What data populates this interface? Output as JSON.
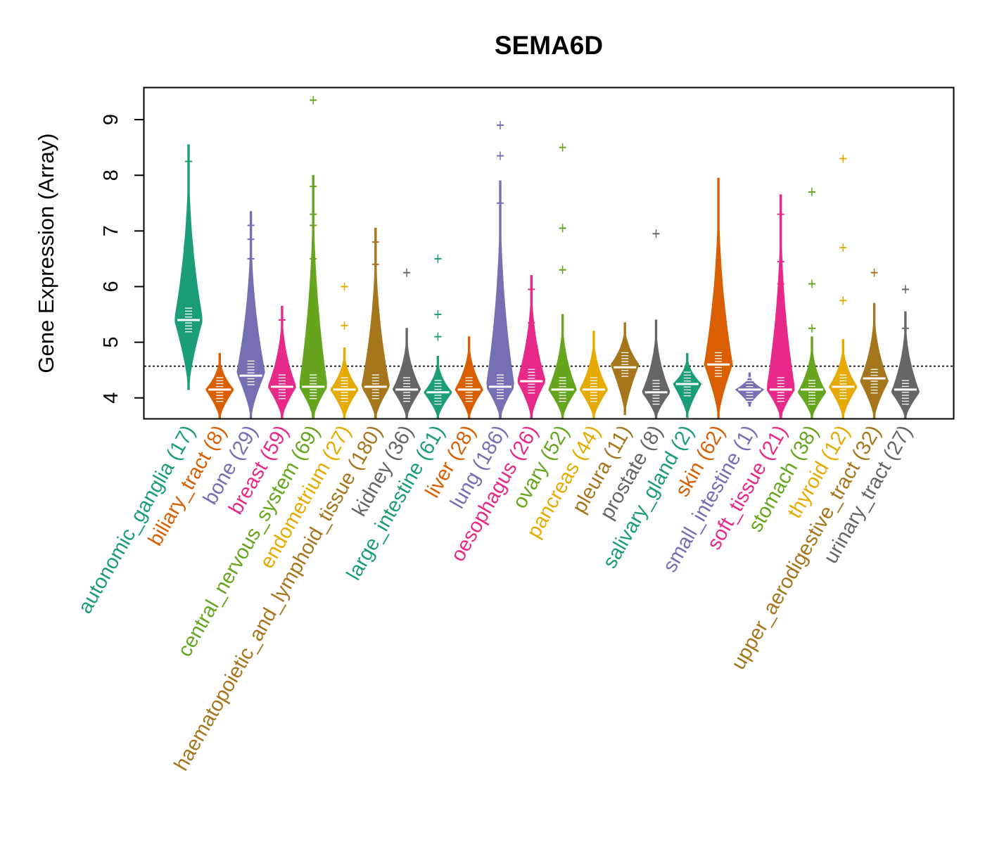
{
  "chart_data": {
    "type": "violin",
    "title": "SEMA6D",
    "ylabel": "Gene Expression (Array)",
    "xlabel": "",
    "ylim": [
      3.63,
      9.57
    ],
    "yticks": [
      "4",
      "5",
      "6",
      "7",
      "8",
      "9"
    ],
    "reference_line": 4.57,
    "grid": false,
    "categories": [
      {
        "label": "autonomic_ganglia (17)",
        "color": "#1B9E77",
        "min": 4.15,
        "max": 8.55,
        "median": 5.4,
        "wide_center": 5.4,
        "outliers": [
          8.25
        ]
      },
      {
        "label": "biliary_tract (8)",
        "color": "#D95F02",
        "min": 3.63,
        "max": 4.8,
        "median": 4.15,
        "wide_center": 4.15,
        "outliers": []
      },
      {
        "label": "bone (29)",
        "color": "#7570B3",
        "min": 3.63,
        "max": 7.35,
        "median": 4.4,
        "wide_center": 4.45,
        "outliers": [
          6.85,
          7.1,
          6.5
        ]
      },
      {
        "label": "breast (59)",
        "color": "#E7298A",
        "min": 3.63,
        "max": 5.65,
        "median": 4.2,
        "wide_center": 4.2,
        "outliers": [
          5.4
        ]
      },
      {
        "label": "central_nervous_system (69)",
        "color": "#66A61E",
        "min": 3.63,
        "max": 8.0,
        "median": 4.2,
        "wide_center": 4.2,
        "outliers": [
          9.35,
          7.8,
          7.3,
          7.1,
          6.5
        ]
      },
      {
        "label": "endometrium (27)",
        "color": "#E6AB02",
        "min": 3.63,
        "max": 4.9,
        "median": 4.15,
        "wide_center": 4.15,
        "outliers": [
          6.0,
          5.3
        ]
      },
      {
        "label": "haematopoietic_and_lymphoid_tissue (180)",
        "color": "#A6761D",
        "min": 3.63,
        "max": 7.05,
        "median": 4.2,
        "wide_center": 4.2,
        "outliers": [
          6.8,
          6.4
        ]
      },
      {
        "label": "kidney (36)",
        "color": "#666666",
        "min": 3.63,
        "max": 5.25,
        "median": 4.15,
        "wide_center": 4.15,
        "outliers": [
          6.25
        ]
      },
      {
        "label": "large_intestine (61)",
        "color": "#1B9E77",
        "min": 3.63,
        "max": 4.75,
        "median": 4.1,
        "wide_center": 4.1,
        "outliers": [
          6.5,
          5.5,
          5.1
        ]
      },
      {
        "label": "liver (28)",
        "color": "#D95F02",
        "min": 3.63,
        "max": 5.1,
        "median": 4.15,
        "wide_center": 4.15,
        "outliers": []
      },
      {
        "label": "lung (186)",
        "color": "#7570B3",
        "min": 3.63,
        "max": 7.9,
        "median": 4.2,
        "wide_center": 4.2,
        "outliers": [
          8.9,
          8.35,
          7.5
        ]
      },
      {
        "label": "oesophagus (26)",
        "color": "#E7298A",
        "min": 3.63,
        "max": 6.2,
        "median": 4.3,
        "wide_center": 4.3,
        "outliers": [
          5.95,
          5.35
        ]
      },
      {
        "label": "ovary (52)",
        "color": "#66A61E",
        "min": 3.63,
        "max": 5.5,
        "median": 4.15,
        "wide_center": 4.15,
        "outliers": [
          8.5,
          7.05,
          6.3
        ]
      },
      {
        "label": "pancreas (44)",
        "color": "#E6AB02",
        "min": 3.63,
        "max": 5.2,
        "median": 4.15,
        "wide_center": 4.15,
        "outliers": []
      },
      {
        "label": "pleura (11)",
        "color": "#A6761D",
        "min": 3.7,
        "max": 5.35,
        "median": 4.55,
        "wide_center": 4.6,
        "outliers": []
      },
      {
        "label": "prostate (8)",
        "color": "#666666",
        "min": 3.63,
        "max": 5.4,
        "median": 4.1,
        "wide_center": 4.1,
        "outliers": [
          6.95
        ]
      },
      {
        "label": "salivary_gland (2)",
        "color": "#1B9E77",
        "min": 3.65,
        "max": 4.8,
        "median": 4.25,
        "wide_center": 4.25,
        "outliers": []
      },
      {
        "label": "skin (62)",
        "color": "#D95F02",
        "min": 3.63,
        "max": 7.95,
        "median": 4.6,
        "wide_center": 4.6,
        "outliers": []
      },
      {
        "label": "small_intestine (1)",
        "color": "#7570B3",
        "min": 3.85,
        "max": 4.45,
        "median": 4.15,
        "wide_center": 4.15,
        "outliers": []
      },
      {
        "label": "soft_tissue (21)",
        "color": "#E7298A",
        "min": 3.63,
        "max": 7.65,
        "median": 4.15,
        "wide_center": 4.15,
        "outliers": [
          7.3,
          6.45,
          6.05
        ]
      },
      {
        "label": "stomach (38)",
        "color": "#66A61E",
        "min": 3.63,
        "max": 5.1,
        "median": 4.15,
        "wide_center": 4.1,
        "outliers": [
          7.7,
          6.05,
          5.25
        ]
      },
      {
        "label": "thyroid (12)",
        "color": "#E6AB02",
        "min": 3.63,
        "max": 5.05,
        "median": 4.2,
        "wide_center": 4.2,
        "outliers": [
          8.3,
          6.7,
          5.75
        ]
      },
      {
        "label": "upper_aerodigestive_tract (32)",
        "color": "#A6761D",
        "min": 3.63,
        "max": 5.7,
        "median": 4.35,
        "wide_center": 4.3,
        "outliers": [
          6.25
        ]
      },
      {
        "label": "urinary_tract (27)",
        "color": "#666666",
        "min": 3.63,
        "max": 5.55,
        "median": 4.15,
        "wide_center": 4.1,
        "outliers": [
          5.95,
          5.25
        ]
      }
    ]
  }
}
